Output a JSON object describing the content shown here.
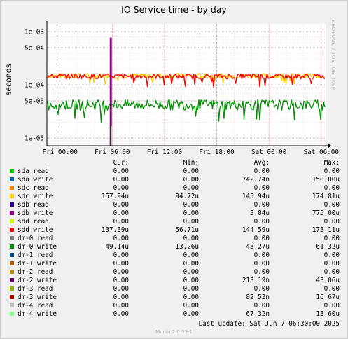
{
  "title": "IO Service time - by day",
  "side_text": "RRDTOOL / TOBI OETIKER",
  "footer": {
    "last_update": "Last update:  Sat Jun  7 06:30:00 2025",
    "munin": "Munin 2.0.33-1"
  },
  "legend_headers": {
    "cur": "Cur:",
    "min": "Min:",
    "avg": "Avg:",
    "max": "Max:"
  },
  "chart_data": {
    "type": "line",
    "ylabel": "seconds",
    "y_scale": "log",
    "ylim": [
      7.2e-06,
      0.0014
    ],
    "y_ticks": [
      {
        "value": 0.001,
        "label": "1e-03"
      },
      {
        "value": 0.0005,
        "label": "5e-04"
      },
      {
        "value": 0.0001,
        "label": "1e-04"
      },
      {
        "value": 5e-05,
        "label": "5e-05"
      },
      {
        "value": 1e-05,
        "label": "1e-05"
      }
    ],
    "x_ticks": [
      "Fri 00:00",
      "Fri 06:00",
      "Fri 12:00",
      "Fri 18:00",
      "Sat 00:00",
      "Sat 06:00"
    ],
    "xlim": [
      "Thu 22:30",
      "Sat 06:30"
    ],
    "spike_at": "Fri 05:50",
    "series": [
      {
        "name": "sda read",
        "color": "#00cc00",
        "cur": "0.00",
        "min": "0.00",
        "avg": "0.00",
        "max": "0.00"
      },
      {
        "name": "sda write",
        "color": "#0066b3",
        "cur": "0.00",
        "min": "0.00",
        "avg": "742.74n",
        "max": "150.00u"
      },
      {
        "name": "sdc read",
        "color": "#ff8000",
        "cur": "0.00",
        "min": "0.00",
        "avg": "0.00",
        "max": "0.00"
      },
      {
        "name": "sdc write",
        "color": "#ffcc00",
        "cur": "157.94u",
        "min": "94.72u",
        "avg": "145.94u",
        "max": "174.81u"
      },
      {
        "name": "sdb read",
        "color": "#330099",
        "cur": "0.00",
        "min": "0.00",
        "avg": "0.00",
        "max": "0.00"
      },
      {
        "name": "sdb write",
        "color": "#990099",
        "cur": "0.00",
        "min": "0.00",
        "avg": "3.84u",
        "max": "775.00u"
      },
      {
        "name": "sdd read",
        "color": "#ccff00",
        "cur": "0.00",
        "min": "0.00",
        "avg": "0.00",
        "max": "0.00"
      },
      {
        "name": "sdd write",
        "color": "#ff0000",
        "cur": "137.39u",
        "min": "56.71u",
        "avg": "144.59u",
        "max": "173.11u"
      },
      {
        "name": "dm-0 read",
        "color": "#808080",
        "cur": "0.00",
        "min": "0.00",
        "avg": "0.00",
        "max": "0.00"
      },
      {
        "name": "dm-0 write",
        "color": "#008f00",
        "cur": "49.14u",
        "min": "13.26u",
        "avg": "43.27u",
        "max": "61.32u"
      },
      {
        "name": "dm-1 read",
        "color": "#00487d",
        "cur": "0.00",
        "min": "0.00",
        "avg": "0.00",
        "max": "0.00"
      },
      {
        "name": "dm-1 write",
        "color": "#b35a00",
        "cur": "0.00",
        "min": "0.00",
        "avg": "0.00",
        "max": "0.00"
      },
      {
        "name": "dm-2 read",
        "color": "#b38f00",
        "cur": "0.00",
        "min": "0.00",
        "avg": "0.00",
        "max": "0.00"
      },
      {
        "name": "dm-2 write",
        "color": "#6b006b",
        "cur": "0.00",
        "min": "0.00",
        "avg": "213.19n",
        "max": "43.06u"
      },
      {
        "name": "dm-3 read",
        "color": "#8fb300",
        "cur": "0.00",
        "min": "0.00",
        "avg": "0.00",
        "max": "0.00"
      },
      {
        "name": "dm-3 write",
        "color": "#b30000",
        "cur": "0.00",
        "min": "0.00",
        "avg": "82.53n",
        "max": "16.67u"
      },
      {
        "name": "dm-4 read",
        "color": "#bebebe",
        "cur": "0.00",
        "min": "0.00",
        "avg": "0.00",
        "max": "0.00"
      },
      {
        "name": "dm-4 write",
        "color": "#80ff80",
        "cur": "0.00",
        "min": "0.00",
        "avg": "67.32n",
        "max": "13.60u"
      }
    ]
  }
}
